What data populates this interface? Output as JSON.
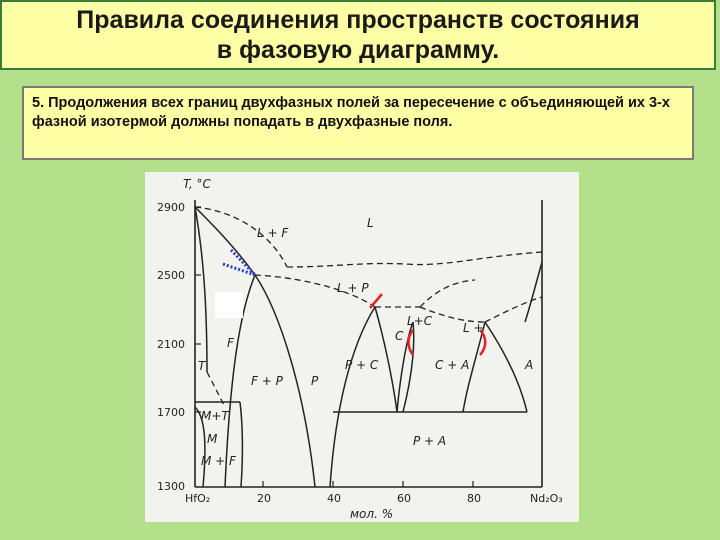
{
  "slide": {
    "title_line1": "Правила соединения пространств состояния",
    "title_line2": "в фазовую диаграмму.",
    "rule_text": "5. Продолжения всех границ  двухфазных полей за пересечение с объединяющей их 3-х фазной изотермой должны попадать в двухфазные поля."
  },
  "diagram": {
    "y_axis_label": "T, °C",
    "x_axis_label": "мол. %",
    "left_component": "HfO₂",
    "right_component": "Nd₂O₃",
    "y_ticks": [
      "2900",
      "2500",
      "2100",
      "1700",
      "1300"
    ],
    "x_ticks": [
      "20",
      "40",
      "60",
      "80"
    ],
    "phase_labels": {
      "L": "L",
      "L_F": "L + F",
      "L_P": "L + P",
      "L_C": "L+C",
      "L_plus": "L +",
      "C": "C",
      "F": "F",
      "F_P": "F + P",
      "P": "P",
      "P_C": "P + C",
      "C_A": "C + A",
      "A": "A",
      "T": "T",
      "M_T": "M+T",
      "M": "M",
      "M_F": "M + F",
      "P_A": "P + A"
    },
    "colors": {
      "line": "#222222",
      "annotation_red": "#e3242b",
      "annotation_blue": "#2b3fc4"
    }
  }
}
